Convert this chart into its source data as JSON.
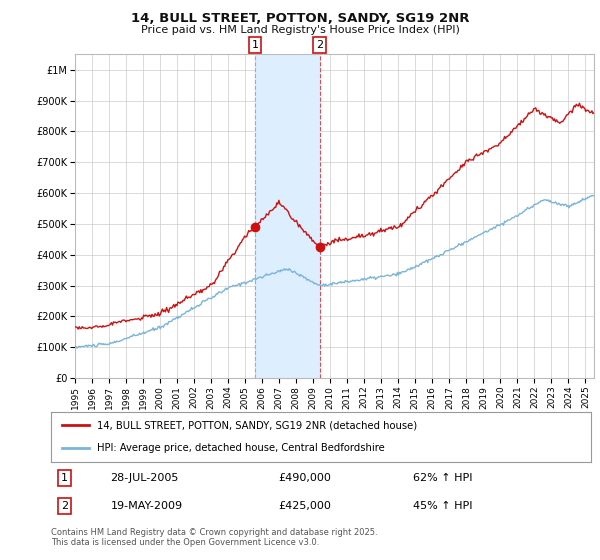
{
  "title": "14, BULL STREET, POTTON, SANDY, SG19 2NR",
  "subtitle": "Price paid vs. HM Land Registry's House Price Index (HPI)",
  "legend_line1": "14, BULL STREET, POTTON, SANDY, SG19 2NR (detached house)",
  "legend_line2": "HPI: Average price, detached house, Central Bedfordshire",
  "footnote": "Contains HM Land Registry data © Crown copyright and database right 2025.\nThis data is licensed under the Open Government Licence v3.0.",
  "hpi_color": "#7ab4d8",
  "price_color": "#cc1111",
  "annotation1": [
    "28-JUL-2005",
    "£490,000",
    "62% ↑ HPI"
  ],
  "annotation2": [
    "19-MAY-2009",
    "£425,000",
    "45% ↑ HPI"
  ],
  "sale1_year": 2005.57,
  "sale1_price": 490000,
  "sale2_year": 2009.38,
  "sale2_price": 425000,
  "ylim_min": 0,
  "ylim_max": 1050000,
  "xmin": 1995,
  "xmax": 2025.5,
  "background_color": "#f5f5f5",
  "plot_background": "#ffffff",
  "shading_color": "#ddeeff"
}
